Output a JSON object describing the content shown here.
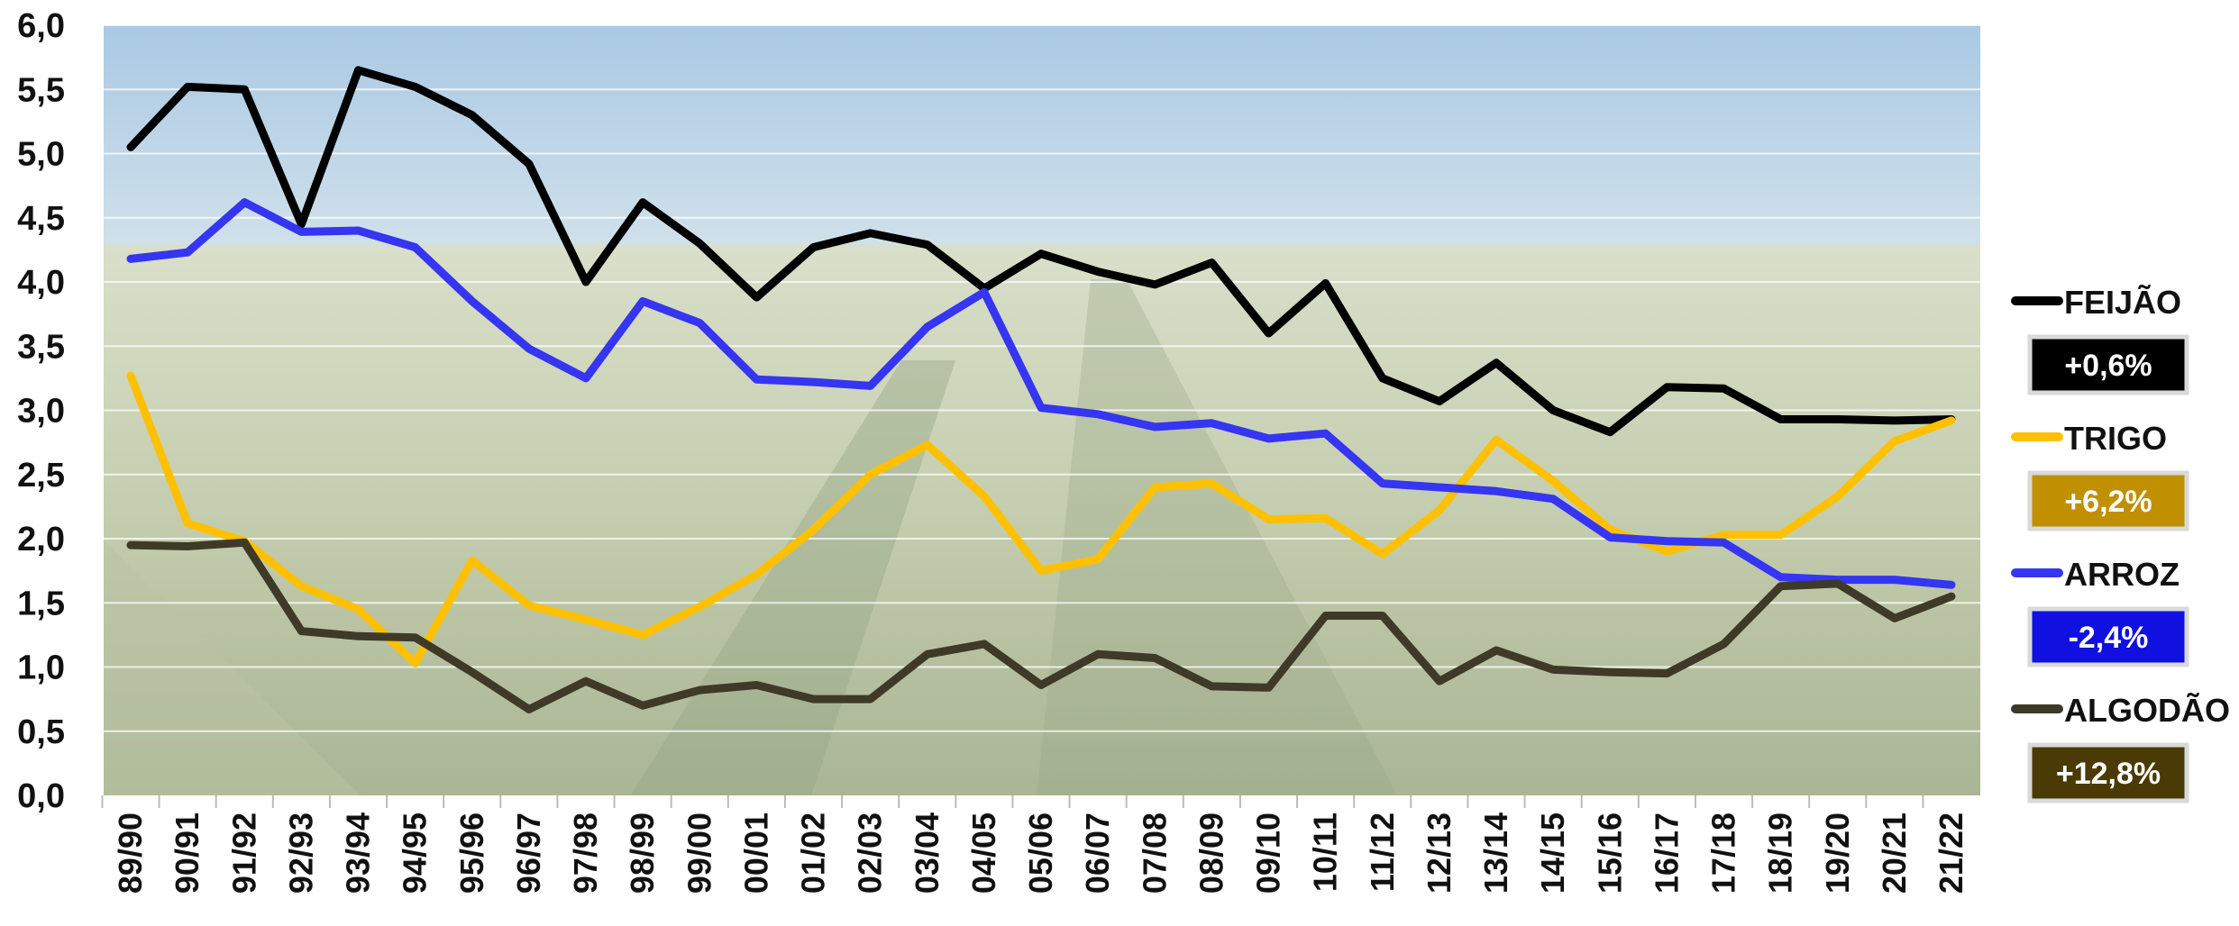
{
  "chart_data": {
    "type": "line",
    "categories": [
      "89/90",
      "90/91",
      "91/92",
      "92/93",
      "93/94",
      "94/95",
      "95/96",
      "96/97",
      "97/98",
      "98/99",
      "99/00",
      "00/01",
      "01/02",
      "02/03",
      "03/04",
      "04/05",
      "05/06",
      "06/07",
      "07/08",
      "08/09",
      "09/10",
      "10/11",
      "11/12",
      "12/13",
      "13/14",
      "14/15",
      "15/16",
      "16/17",
      "17/18",
      "18/19",
      "19/20",
      "20/21",
      "21/22"
    ],
    "ylim": [
      0,
      6
    ],
    "yticks": [
      "0,0",
      "0,5",
      "1,0",
      "1,5",
      "2,0",
      "2,5",
      "3,0",
      "3,5",
      "4,0",
      "4,5",
      "5,0",
      "5,5",
      "6,0"
    ],
    "ytick_values": [
      0,
      0.5,
      1,
      1.5,
      2,
      2.5,
      3,
      3.5,
      4,
      4.5,
      5,
      5.5,
      6
    ],
    "grid": true,
    "legend_position": "right",
    "series": [
      {
        "name": "FEIJÃO",
        "color": "#000000",
        "badge": "+0,6%",
        "badge_color": "#000000",
        "values": [
          5.05,
          5.52,
          5.5,
          4.45,
          5.65,
          5.52,
          5.3,
          4.92,
          4.0,
          4.62,
          4.3,
          3.88,
          4.27,
          4.38,
          4.29,
          3.95,
          4.22,
          4.08,
          3.98,
          4.15,
          3.6,
          3.99,
          3.25,
          3.07,
          3.37,
          3.0,
          2.83,
          3.18,
          3.17,
          2.93,
          2.93,
          2.92,
          2.93
        ]
      },
      {
        "name": "TRIGO",
        "color": "#FFC000",
        "badge": "+6,2%",
        "badge_color": "#C09000",
        "values": [
          3.27,
          2.12,
          1.98,
          1.63,
          1.45,
          1.03,
          1.83,
          1.48,
          1.37,
          1.25,
          1.47,
          1.72,
          2.07,
          2.5,
          2.73,
          2.33,
          1.75,
          1.84,
          2.4,
          2.43,
          2.15,
          2.16,
          1.88,
          2.22,
          2.77,
          2.45,
          2.07,
          1.9,
          2.03,
          2.03,
          2.33,
          2.76,
          2.92
        ]
      },
      {
        "name": "ARROZ",
        "color": "#3535F2",
        "badge": "-2,4%",
        "badge_color": "#1010E0",
        "values": [
          4.18,
          4.23,
          4.62,
          4.39,
          4.4,
          4.27,
          3.85,
          3.48,
          3.25,
          3.85,
          3.68,
          3.24,
          3.22,
          3.19,
          3.65,
          3.92,
          3.02,
          2.97,
          2.87,
          2.9,
          2.78,
          2.82,
          2.43,
          2.4,
          2.37,
          2.31,
          2.01,
          1.98,
          1.97,
          1.7,
          1.68,
          1.68,
          1.64
        ]
      },
      {
        "name": "ALGODÃO",
        "color": "#3F3A28",
        "badge": "+12,8%",
        "badge_color": "#4A3A06",
        "values": [
          1.95,
          1.94,
          1.97,
          1.28,
          1.24,
          1.23,
          0.96,
          0.67,
          0.89,
          0.7,
          0.82,
          0.86,
          0.75,
          0.75,
          1.1,
          1.18,
          0.86,
          1.1,
          1.07,
          0.85,
          0.84,
          1.4,
          1.4,
          0.89,
          1.13,
          0.98,
          0.96,
          0.95,
          1.18,
          1.63,
          1.65,
          1.38,
          1.55
        ]
      }
    ]
  }
}
